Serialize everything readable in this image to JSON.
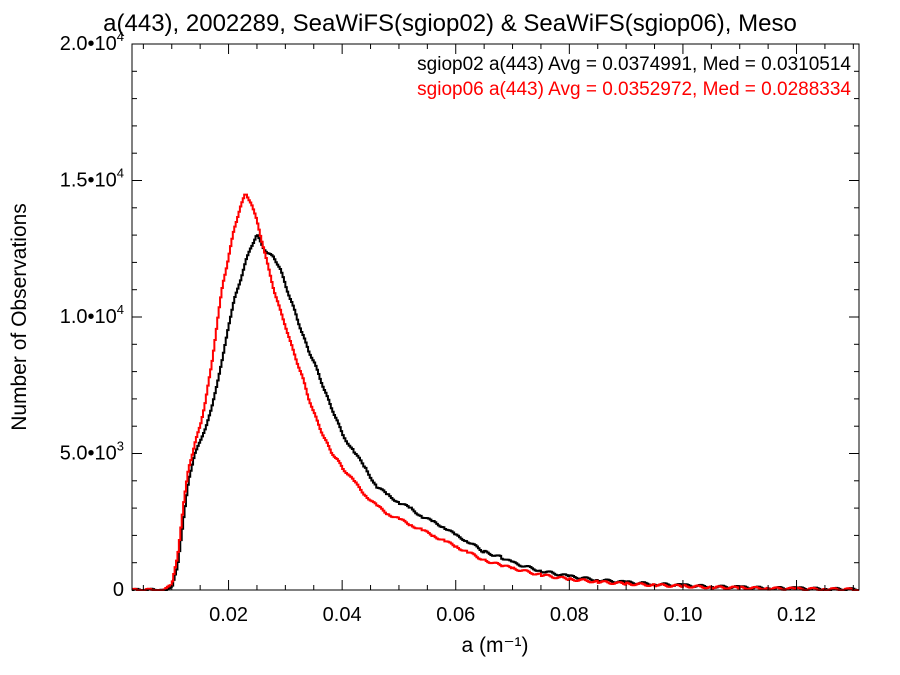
{
  "chart_data": {
    "type": "line",
    "title": "a(443), 2002289, SeaWiFS(sgiop02) & SeaWiFS(sgiop06), Meso",
    "xlabel": "a (m⁻¹)",
    "ylabel": "Number of Observations",
    "xlim": [
      0.003,
      0.131
    ],
    "ylim": [
      0,
      20000
    ],
    "x_ticks": [
      {
        "value": 0.02,
        "label": "0.02"
      },
      {
        "value": 0.04,
        "label": "0.04"
      },
      {
        "value": 0.06,
        "label": "0.06"
      },
      {
        "value": 0.08,
        "label": "0.08"
      },
      {
        "value": 0.1,
        "label": "0.10"
      },
      {
        "value": 0.12,
        "label": "0.12"
      }
    ],
    "y_ticks": [
      {
        "value": 0,
        "label": "0",
        "base": "0",
        "exp": ""
      },
      {
        "value": 5000,
        "label": "5.0•10³",
        "base": "5.0•10",
        "exp": "3"
      },
      {
        "value": 10000,
        "label": "1.0•10⁴",
        "base": "1.0•10",
        "exp": "4"
      },
      {
        "value": 15000,
        "label": "1.5•10⁴",
        "base": "1.5•10",
        "exp": "4"
      },
      {
        "value": 20000,
        "label": "2.0•10⁴",
        "base": "2.0•10",
        "exp": "4"
      }
    ],
    "grid": false,
    "legend_position": "top-right",
    "series": [
      {
        "name": "sgiop02",
        "legend_text": "sgiop02 a(443) Avg = 0.0374991, Med = 0.0310514",
        "color": "#000000",
        "x": [
          0.003,
          0.008,
          0.01,
          0.011,
          0.012,
          0.013,
          0.014,
          0.015,
          0.016,
          0.017,
          0.018,
          0.019,
          0.02,
          0.021,
          0.022,
          0.023,
          0.024,
          0.025,
          0.026,
          0.027,
          0.028,
          0.029,
          0.03,
          0.031,
          0.032,
          0.033,
          0.034,
          0.035,
          0.036,
          0.037,
          0.038,
          0.039,
          0.04,
          0.042,
          0.044,
          0.046,
          0.048,
          0.05,
          0.052,
          0.054,
          0.056,
          0.058,
          0.06,
          0.062,
          0.065,
          0.068,
          0.07,
          0.075,
          0.08,
          0.085,
          0.09,
          0.095,
          0.1,
          0.105,
          0.11,
          0.115,
          0.12,
          0.125,
          0.131
        ],
        "y": [
          0,
          0,
          80,
          800,
          2500,
          4000,
          5000,
          5400,
          6000,
          6600,
          7600,
          8500,
          9700,
          10600,
          11300,
          12000,
          12600,
          13000,
          12600,
          12300,
          12200,
          11800,
          11200,
          10600,
          10000,
          9400,
          8800,
          8400,
          7800,
          7300,
          6700,
          6300,
          5700,
          5100,
          4500,
          3800,
          3500,
          3200,
          3000,
          2700,
          2500,
          2300,
          2000,
          1800,
          1400,
          1200,
          1000,
          700,
          500,
          370,
          280,
          220,
          170,
          130,
          100,
          70,
          60,
          40,
          20
        ]
      },
      {
        "name": "sgiop06",
        "legend_text": "sgiop06 a(443) Avg = 0.0352972, Med = 0.0288334",
        "color": "#ff0000",
        "x": [
          0.003,
          0.008,
          0.01,
          0.011,
          0.012,
          0.013,
          0.014,
          0.015,
          0.016,
          0.017,
          0.018,
          0.019,
          0.02,
          0.021,
          0.022,
          0.023,
          0.024,
          0.025,
          0.026,
          0.027,
          0.028,
          0.029,
          0.03,
          0.031,
          0.032,
          0.033,
          0.034,
          0.035,
          0.036,
          0.037,
          0.038,
          0.039,
          0.04,
          0.042,
          0.044,
          0.046,
          0.048,
          0.05,
          0.052,
          0.054,
          0.056,
          0.058,
          0.06,
          0.062,
          0.065,
          0.068,
          0.07,
          0.075,
          0.08,
          0.085,
          0.09,
          0.095,
          0.1,
          0.105,
          0.11,
          0.115,
          0.12,
          0.125,
          0.131
        ],
        "y": [
          0,
          0,
          150,
          1200,
          3000,
          4500,
          5300,
          6000,
          7000,
          8200,
          9800,
          11200,
          12200,
          13200,
          14000,
          14500,
          14200,
          13500,
          12700,
          11800,
          11000,
          10300,
          9700,
          9000,
          8400,
          7800,
          7100,
          6500,
          6000,
          5500,
          5100,
          4800,
          4500,
          4000,
          3500,
          3100,
          2800,
          2600,
          2400,
          2200,
          2000,
          1800,
          1600,
          1400,
          1100,
          900,
          800,
          550,
          400,
          300,
          230,
          180,
          140,
          100,
          80,
          60,
          40,
          30,
          15
        ]
      }
    ]
  }
}
